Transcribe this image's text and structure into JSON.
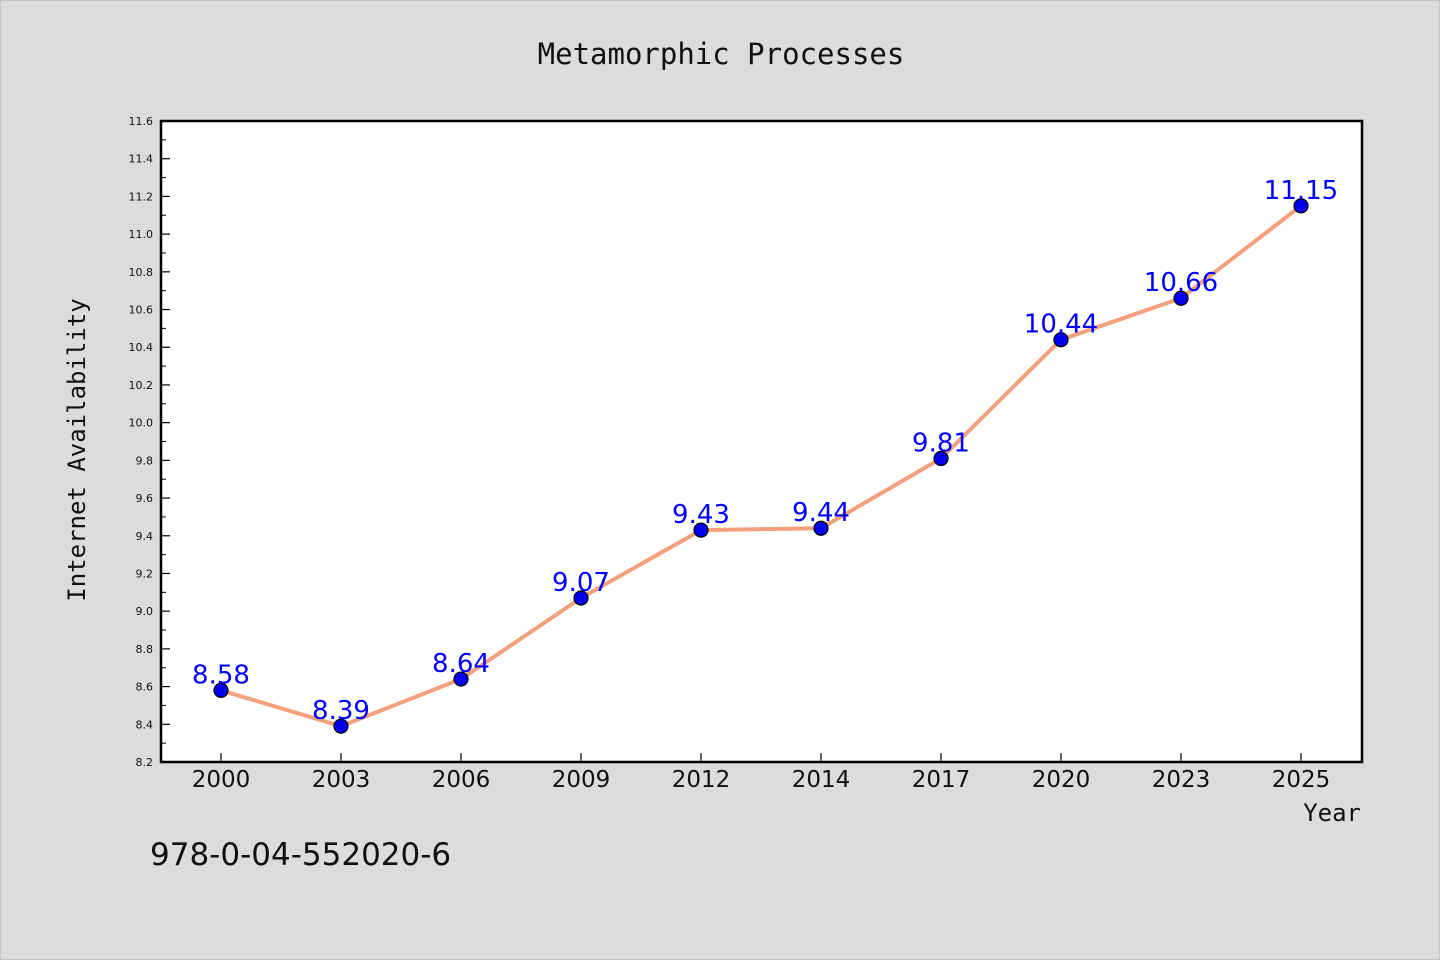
{
  "chart_data": {
    "type": "line",
    "title": "Metamorphic Processes",
    "xlabel": "Year",
    "ylabel": "Internet Availability",
    "categories": [
      "2000",
      "2003",
      "2006",
      "2009",
      "2012",
      "2014",
      "2017",
      "2020",
      "2023",
      "2025"
    ],
    "series": [
      {
        "values": [
          8.58,
          8.39,
          8.64,
          9.07,
          9.43,
          9.44,
          9.81,
          10.44,
          10.66,
          11.15
        ]
      }
    ],
    "data_labels": [
      "8.58",
      "8.39",
      "8.64",
      "9.07",
      "9.43",
      "9.44",
      "9.81",
      "10.44",
      "10.66",
      "11.15"
    ],
    "ylim": [
      8.2,
      11.6
    ],
    "yticks": [
      "8.2",
      "8.4",
      "8.6",
      "8.8",
      "9.0",
      "9.2",
      "9.4",
      "9.6",
      "9.8",
      "10.0",
      "10.2",
      "10.4",
      "10.6",
      "10.8",
      "11.0",
      "11.2",
      "11.4",
      "11.6"
    ],
    "grid": false,
    "line_color": "#f4a07c",
    "marker_color": "#0000ee",
    "label_color": "#0000ff"
  },
  "footer": {
    "isbn": "978-0-04-552020-6"
  }
}
